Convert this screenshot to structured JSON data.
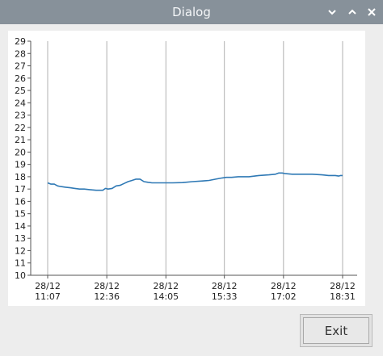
{
  "window": {
    "title": "Dialog",
    "controls": [
      "chevron-down-icon",
      "chevron-up-icon",
      "close-icon"
    ]
  },
  "colors": {
    "titlebar": "#87919a",
    "line": "#2f79b5",
    "grid": "#b0b0b0"
  },
  "chart_data": {
    "type": "line",
    "title": "",
    "xlabel": "",
    "ylabel": "",
    "ylim": [
      10,
      29
    ],
    "yticks": [
      10,
      11,
      12,
      13,
      14,
      15,
      16,
      17,
      18,
      19,
      20,
      21,
      22,
      23,
      24,
      25,
      26,
      27,
      28,
      29
    ],
    "xticks": [
      {
        "t": "11:07",
        "label": "28/12\n11:07"
      },
      {
        "t": "12:36",
        "label": "28/12\n12:36"
      },
      {
        "t": "14:05",
        "label": "28/12\n14:05"
      },
      {
        "t": "15:33",
        "label": "28/12\n15:33"
      },
      {
        "t": "17:02",
        "label": "28/12\n17:02"
      },
      {
        "t": "18:31",
        "label": "28/12\n18:31"
      }
    ],
    "grid": true,
    "series": [
      {
        "x": [
          "11:07",
          "11:12",
          "11:17",
          "11:22",
          "11:27",
          "11:34",
          "11:41",
          "11:48",
          "11:55",
          "12:02",
          "12:10",
          "12:20",
          "12:30",
          "12:34",
          "12:38",
          "12:44",
          "12:50",
          "12:56",
          "13:02",
          "13:08",
          "13:14",
          "13:20",
          "13:26",
          "13:32",
          "13:38",
          "13:44",
          "13:50",
          "14:00",
          "14:15",
          "14:30",
          "14:45",
          "15:00",
          "15:10",
          "15:20",
          "15:30",
          "15:36",
          "15:44",
          "15:54",
          "16:10",
          "16:25",
          "16:40",
          "16:50",
          "16:55",
          "17:00",
          "17:05",
          "17:15",
          "17:30",
          "17:45",
          "18:00",
          "18:10",
          "18:20",
          "18:25",
          "18:28",
          "18:31"
        ],
        "values": [
          17.5,
          17.4,
          17.4,
          17.25,
          17.2,
          17.15,
          17.1,
          17.05,
          17.0,
          17.0,
          16.95,
          16.9,
          16.9,
          17.05,
          17.0,
          17.05,
          17.25,
          17.3,
          17.45,
          17.6,
          17.7,
          17.8,
          17.8,
          17.6,
          17.55,
          17.5,
          17.5,
          17.5,
          17.5,
          17.52,
          17.6,
          17.65,
          17.7,
          17.8,
          17.9,
          17.95,
          17.95,
          18.0,
          18.0,
          18.1,
          18.15,
          18.2,
          18.3,
          18.3,
          18.25,
          18.2,
          18.2,
          18.2,
          18.15,
          18.1,
          18.1,
          18.05,
          18.1,
          18.1
        ]
      }
    ]
  },
  "exit_button": {
    "label": "Exit"
  }
}
